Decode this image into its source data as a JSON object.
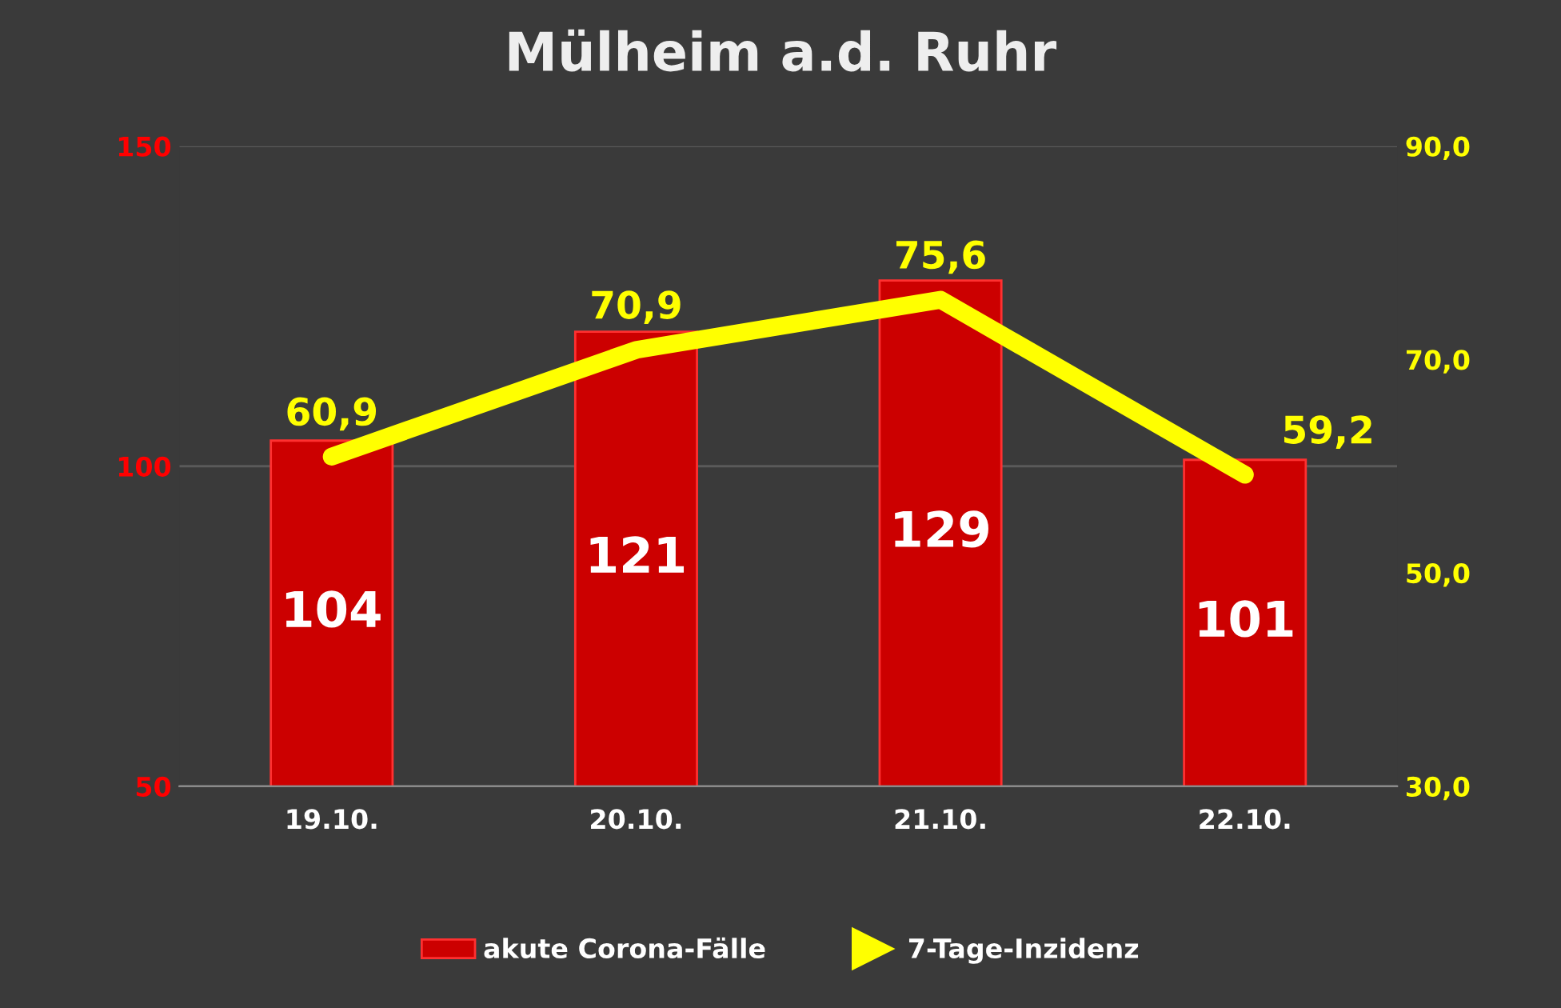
{
  "chart_data": {
    "type": "bar",
    "title": "Mülheim a.d. Ruhr",
    "categories": [
      "19.10.",
      "20.10.",
      "21.10.",
      "22.10."
    ],
    "series": [
      {
        "name": "akute Corona-Fälle",
        "color": "#cc0000",
        "values": [
          104,
          121,
          129,
          101
        ],
        "data_labels": true
      },
      {
        "name": "7-Tage-Inzidenz",
        "type": "line",
        "axis": "y2",
        "color": "#ffff00",
        "values": [
          60.9,
          70.9,
          75.6,
          59.2
        ],
        "value_labels": [
          "60,9",
          "70,9",
          "75,6",
          "59,2"
        ]
      }
    ],
    "ylim": [
      50,
      150
    ],
    "yticks": [
      50,
      100,
      150
    ],
    "y2lim": [
      30,
      90
    ],
    "y2ticks": [
      {
        "value": 30,
        "label": "30,0"
      },
      {
        "value": 50,
        "label": "50,0"
      },
      {
        "value": 70,
        "label": "70,0"
      },
      {
        "value": 90,
        "label": "90,0"
      }
    ],
    "grid": "y",
    "legend": "bottom",
    "line_style": "solid"
  }
}
